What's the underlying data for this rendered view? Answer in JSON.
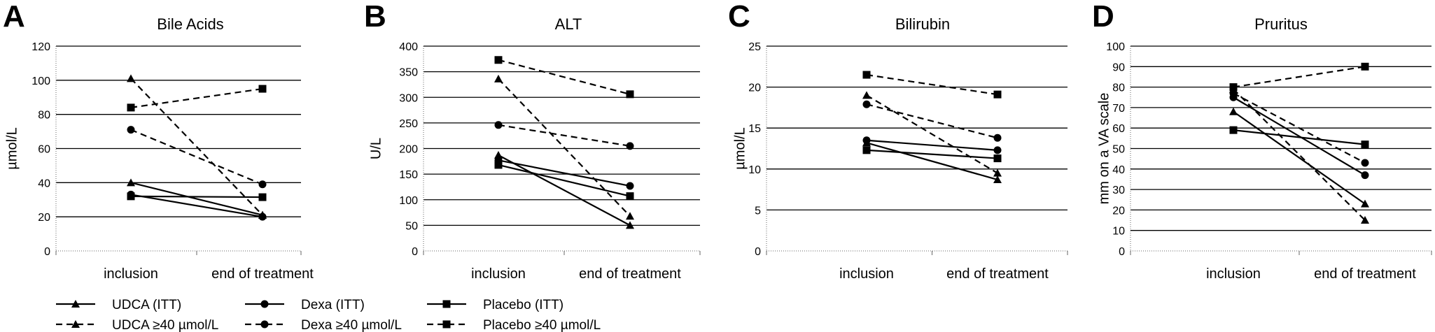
{
  "chart_data": [
    {
      "type": "line",
      "panel": "A",
      "title": "Bile Acids",
      "ylabel": "µmol/L",
      "categories": [
        "inclusion",
        "end of treatment"
      ],
      "ylim": [
        0,
        120
      ],
      "yticks": [
        0,
        20,
        40,
        60,
        80,
        100,
        120
      ],
      "series": [
        {
          "name": "UDCA (ITT)",
          "values": [
            40,
            21
          ]
        },
        {
          "name": "Dexa (ITT)",
          "values": [
            33,
            20
          ]
        },
        {
          "name": "Placebo (ITT)",
          "values": [
            32,
            31.5
          ]
        },
        {
          "name": "UDCA ≥40 µmol/L",
          "values": [
            101,
            21
          ]
        },
        {
          "name": "Dexa ≥40 µmol/L",
          "values": [
            71,
            39
          ]
        },
        {
          "name": "Placebo ≥40 µmol/L",
          "values": [
            84,
            95
          ]
        }
      ]
    },
    {
      "type": "line",
      "panel": "B",
      "title": "ALT",
      "ylabel": "U/L",
      "categories": [
        "inclusion",
        "end of treatment"
      ],
      "ylim": [
        0,
        400
      ],
      "yticks": [
        0,
        50,
        100,
        150,
        200,
        250,
        300,
        350,
        400
      ],
      "series": [
        {
          "name": "UDCA (ITT)",
          "values": [
            187,
            50
          ]
        },
        {
          "name": "Dexa (ITT)",
          "values": [
            177,
            127
          ]
        },
        {
          "name": "Placebo (ITT)",
          "values": [
            168,
            107
          ]
        },
        {
          "name": "UDCA ≥40 µmol/L",
          "values": [
            336,
            68
          ]
        },
        {
          "name": "Dexa ≥40 µmol/L",
          "values": [
            246,
            205
          ]
        },
        {
          "name": "Placebo ≥40 µmol/L",
          "values": [
            373,
            306
          ]
        }
      ]
    },
    {
      "type": "line",
      "panel": "C",
      "title": "Bilirubin",
      "ylabel": "µmol/L",
      "categories": [
        "inclusion",
        "end of treatment"
      ],
      "ylim": [
        0,
        25
      ],
      "yticks": [
        0,
        5,
        10,
        15,
        20,
        25
      ],
      "series": [
        {
          "name": "UDCA (ITT)",
          "values": [
            13.2,
            8.7
          ]
        },
        {
          "name": "Dexa (ITT)",
          "values": [
            13.5,
            12.3
          ]
        },
        {
          "name": "Placebo (ITT)",
          "values": [
            12.3,
            11.3
          ]
        },
        {
          "name": "UDCA ≥40 µmol/L",
          "values": [
            19,
            9.5
          ]
        },
        {
          "name": "Dexa ≥40 µmol/L",
          "values": [
            17.9,
            13.8
          ]
        },
        {
          "name": "Placebo ≥40 µmol/L",
          "values": [
            21.5,
            19.1
          ]
        }
      ]
    },
    {
      "type": "line",
      "panel": "D",
      "title": "Pruritus",
      "ylabel": "mm on a VA scale",
      "categories": [
        "inclusion",
        "end of treatment"
      ],
      "ylim": [
        0,
        100
      ],
      "yticks": [
        0,
        10,
        20,
        30,
        40,
        50,
        60,
        70,
        80,
        90,
        100
      ],
      "series": [
        {
          "name": "UDCA (ITT)",
          "values": [
            68,
            23
          ]
        },
        {
          "name": "Dexa (ITT)",
          "values": [
            75,
            37
          ]
        },
        {
          "name": "Placebo (ITT)",
          "values": [
            59,
            52
          ]
        },
        {
          "name": "UDCA ≥40 µmol/L",
          "values": [
            79,
            15
          ]
        },
        {
          "name": "Dexa ≥40 µmol/L",
          "values": [
            77,
            43
          ]
        },
        {
          "name": "Placebo ≥40 µmol/L",
          "values": [
            80,
            90
          ]
        }
      ]
    }
  ],
  "series_styles": [
    {
      "name": "UDCA (ITT)",
      "marker": "triangle",
      "dash": "solid"
    },
    {
      "name": "Dexa (ITT)",
      "marker": "circle",
      "dash": "solid"
    },
    {
      "name": "Placebo (ITT)",
      "marker": "square",
      "dash": "solid"
    },
    {
      "name": "UDCA ≥40 µmol/L",
      "marker": "triangle",
      "dash": "dashed"
    },
    {
      "name": "Dexa ≥40 µmol/L",
      "marker": "circle",
      "dash": "dashed"
    },
    {
      "name": "Placebo ≥40 µmol/L",
      "marker": "square",
      "dash": "dashed"
    }
  ],
  "legend": {
    "placement": "bottom-left",
    "entries": [
      "UDCA (ITT)",
      "Dexa (ITT)",
      "Placebo (ITT)",
      "UDCA ≥40 µmol/L",
      "Dexa ≥40 µmol/L",
      "Placebo ≥40 µmol/L"
    ]
  },
  "colors": {
    "ink": "#000000",
    "background": "#ffffff"
  }
}
